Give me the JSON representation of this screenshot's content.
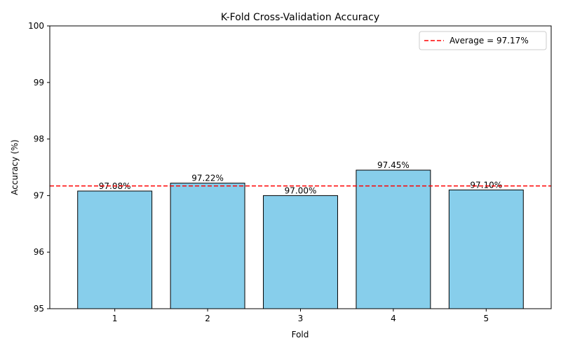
{
  "chart_data": {
    "type": "bar",
    "title": "K-Fold Cross-Validation Accuracy",
    "xlabel": "Fold",
    "ylabel": "Accuracy (%)",
    "categories": [
      "1",
      "2",
      "3",
      "4",
      "5"
    ],
    "values": [
      97.08,
      97.22,
      97.0,
      97.45,
      97.1
    ],
    "bar_labels": [
      "97.08%",
      "97.22%",
      "97.00%",
      "97.45%",
      "97.10%"
    ],
    "ylim": [
      95,
      100
    ],
    "yticks": [
      "95",
      "96",
      "97",
      "98",
      "99",
      "100"
    ],
    "bar_color": "#87ceeb",
    "bar_edge_color": "#000000",
    "reference_line": {
      "value": 97.17,
      "label": "Average = 97.17%",
      "color": "#ff0000",
      "style": "dashed"
    },
    "legend_position": "top-right",
    "grid": false
  }
}
